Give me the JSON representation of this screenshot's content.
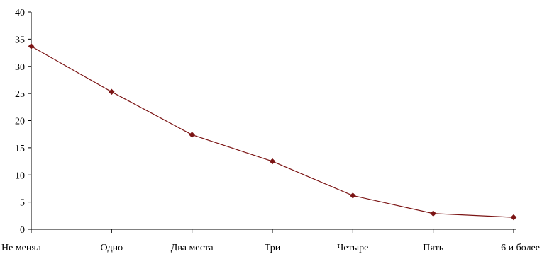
{
  "chart_data": {
    "type": "line",
    "categories": [
      "Не менял",
      "Одно",
      "Два места",
      "Три",
      "Четыре",
      "Пять",
      "6 и более"
    ],
    "series": [
      {
        "values": [
          33.7,
          25.3,
          17.4,
          12.5,
          6.2,
          2.9,
          2.2
        ],
        "color": "#7b1414",
        "marker": "diamond"
      }
    ],
    "ylim": [
      0,
      40
    ],
    "yticks": [
      0,
      5,
      10,
      15,
      20,
      25,
      30,
      35,
      40
    ],
    "grid": false,
    "legend": "none",
    "title": "",
    "xlabel": "",
    "ylabel": ""
  }
}
